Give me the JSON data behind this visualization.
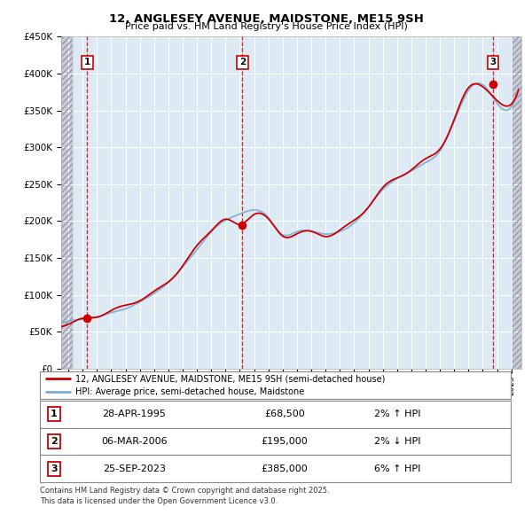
{
  "title": "12, ANGLESEY AVENUE, MAIDSTONE, ME15 9SH",
  "subtitle": "Price paid vs. HM Land Registry's House Price Index (HPI)",
  "ylim": [
    0,
    450000
  ],
  "yticks": [
    0,
    50000,
    100000,
    150000,
    200000,
    250000,
    300000,
    350000,
    400000,
    450000
  ],
  "xlim_start": 1993.5,
  "xlim_end": 2025.7,
  "sale_dates": [
    1995.32,
    2006.18,
    2023.73
  ],
  "sale_prices": [
    68500,
    195000,
    385000
  ],
  "sale_labels": [
    "1",
    "2",
    "3"
  ],
  "legend_line1": "12, ANGLESEY AVENUE, MAIDSTONE, ME15 9SH (semi-detached house)",
  "legend_line2": "HPI: Average price, semi-detached house, Maidstone",
  "table_rows": [
    [
      "1",
      "28-APR-1995",
      "£68,500",
      "2% ↑ HPI"
    ],
    [
      "2",
      "06-MAR-2006",
      "£195,000",
      "2% ↓ HPI"
    ],
    [
      "3",
      "25-SEP-2023",
      "£385,000",
      "6% ↑ HPI"
    ]
  ],
  "footnote": "Contains HM Land Registry data © Crown copyright and database right 2025.\nThis data is licensed under the Open Government Licence v3.0.",
  "red_color": "#cc0000",
  "blue_color": "#7aadd4",
  "plot_bg_color": "#ddeaf4",
  "grid_color": "#ffffff",
  "hatch_region_color": "#c8ccd8"
}
